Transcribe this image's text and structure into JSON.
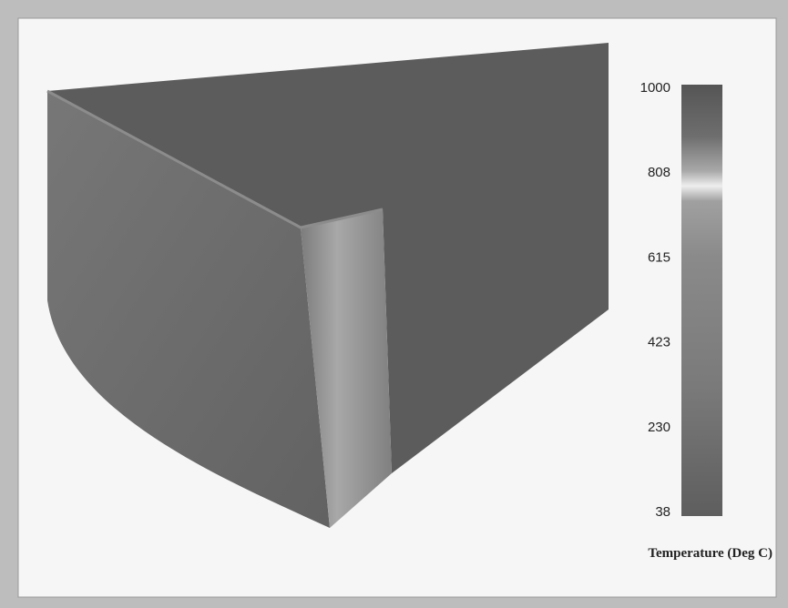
{
  "colorbar": {
    "label": "Temperature (Deg C)",
    "ticks": [
      1000,
      808,
      615,
      423,
      230,
      38
    ]
  }
}
